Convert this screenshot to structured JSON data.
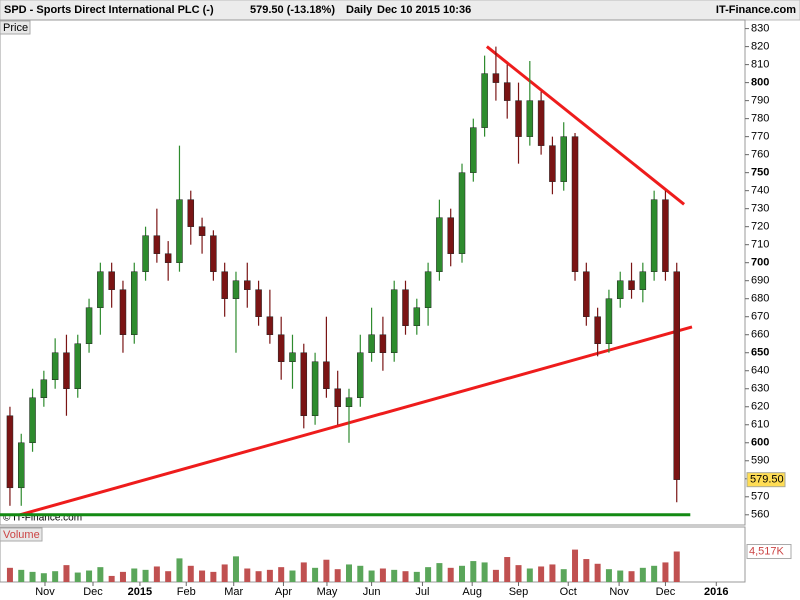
{
  "header": {
    "title": "SPD - Sports Direct International PLC (-)",
    "quote": "579.50 (-13.18%)",
    "period": "Daily",
    "timestamp": "Dec 10 2015 10:36",
    "source": "IT-Finance.com"
  },
  "chart_data": [
    {
      "type": "candlestick",
      "label": "Price",
      "watermark": "© IT-Finance.com",
      "up_color": "#2e8b2e",
      "down_color": "#7a1414",
      "open": [
        615,
        575,
        600,
        625,
        635,
        650,
        630,
        655,
        675,
        695,
        685,
        660,
        695,
        715,
        705,
        700,
        735,
        720,
        715,
        695,
        680,
        690,
        685,
        670,
        660,
        645,
        650,
        615,
        645,
        630,
        620,
        625,
        650,
        660,
        650,
        685,
        665,
        675,
        695,
        725,
        705,
        750,
        775,
        805,
        800,
        790,
        770,
        790,
        765,
        745,
        770,
        695,
        670,
        655,
        680,
        690,
        685,
        695,
        735,
        695
      ],
      "high": [
        620,
        605,
        630,
        640,
        658,
        660,
        660,
        680,
        700,
        700,
        690,
        700,
        720,
        730,
        712,
        765,
        740,
        725,
        718,
        700,
        695,
        700,
        690,
        685,
        670,
        660,
        655,
        650,
        670,
        640,
        630,
        660,
        675,
        670,
        690,
        690,
        680,
        700,
        735,
        730,
        755,
        780,
        815,
        820,
        810,
        800,
        812,
        795,
        770,
        778,
        772,
        700,
        675,
        685,
        695,
        700,
        700,
        740,
        740,
        700
      ],
      "low": [
        565,
        565,
        595,
        620,
        630,
        615,
        625,
        650,
        660,
        675,
        650,
        655,
        690,
        700,
        690,
        695,
        710,
        705,
        690,
        670,
        650,
        675,
        665,
        655,
        635,
        630,
        608,
        610,
        625,
        610,
        600,
        620,
        645,
        640,
        645,
        660,
        660,
        665,
        690,
        698,
        700,
        745,
        770,
        790,
        780,
        755,
        765,
        760,
        738,
        740,
        690,
        665,
        648,
        650,
        675,
        680,
        678,
        690,
        690,
        567
      ],
      "close": [
        575,
        600,
        625,
        635,
        650,
        630,
        655,
        675,
        695,
        685,
        660,
        695,
        715,
        705,
        700,
        735,
        720,
        715,
        695,
        680,
        690,
        685,
        670,
        660,
        645,
        650,
        615,
        645,
        630,
        620,
        625,
        650,
        660,
        650,
        685,
        665,
        675,
        695,
        725,
        705,
        750,
        775,
        805,
        800,
        790,
        770,
        790,
        765,
        745,
        770,
        695,
        670,
        655,
        680,
        690,
        685,
        695,
        735,
        695,
        579.5
      ],
      "last_price": {
        "value": 579.5,
        "label": "579.50"
      },
      "ylim": [
        556,
        832
      ],
      "yticks": [
        560,
        570,
        580,
        590,
        600,
        610,
        620,
        630,
        640,
        650,
        660,
        670,
        680,
        690,
        700,
        710,
        720,
        730,
        740,
        750,
        760,
        770,
        780,
        790,
        800,
        810,
        820,
        830
      ],
      "xlim": [
        -0.88,
        65.04
      ],
      "trendlines": [
        {
          "color": "#ee1c1c",
          "x": [
            0.88,
            60.35
          ],
          "y": [
            560,
            664.3
          ]
        },
        {
          "color": "#ee1c1c",
          "x": [
            42.2,
            59.65
          ],
          "y": [
            820,
            732.4
          ]
        },
        {
          "color": "#138a13",
          "x": [
            -0.88,
            60.2
          ],
          "y": [
            560,
            560
          ]
        }
      ]
    },
    {
      "type": "bar",
      "label": "Volume",
      "values": [
        2100,
        1800,
        1500,
        1300,
        1600,
        2500,
        1400,
        1700,
        2200,
        900,
        1500,
        2000,
        1800,
        2300,
        1600,
        3500,
        2400,
        1700,
        1500,
        2600,
        3800,
        2000,
        1600,
        1800,
        2200,
        1700,
        2900,
        2100,
        3300,
        1900,
        2600,
        2400,
        1700,
        2000,
        1800,
        1600,
        1500,
        2200,
        2800,
        2100,
        2400,
        3100,
        2900,
        1800,
        3700,
        2500,
        2000,
        2300,
        2600,
        1900,
        4800,
        3400,
        2700,
        1900,
        1700,
        1600,
        2100,
        2400,
        2900,
        4517
      ],
      "last_value": {
        "value": 4517,
        "label": "4,517K"
      },
      "ylim": [
        0,
        8000
      ],
      "xlim": [
        -0.88,
        65.04
      ],
      "xticks": [
        {
          "value": 3.1,
          "label": "Nov"
        },
        {
          "value": 7.35,
          "label": "Dec"
        },
        {
          "value": 11.5,
          "label": "2015"
        },
        {
          "value": 15.6,
          "label": "Feb"
        },
        {
          "value": 19.8,
          "label": "Mar"
        },
        {
          "value": 24.2,
          "label": "Apr"
        },
        {
          "value": 28.05,
          "label": "May"
        },
        {
          "value": 32,
          "label": "Jun"
        },
        {
          "value": 36.5,
          "label": "Jul"
        },
        {
          "value": 40.9,
          "label": "Aug"
        },
        {
          "value": 45,
          "label": "Sep"
        },
        {
          "value": 49.4,
          "label": "Oct"
        },
        {
          "value": 53.9,
          "label": "Nov"
        },
        {
          "value": 58,
          "label": "Dec"
        },
        {
          "value": 62.5,
          "label": "2016"
        }
      ]
    }
  ]
}
